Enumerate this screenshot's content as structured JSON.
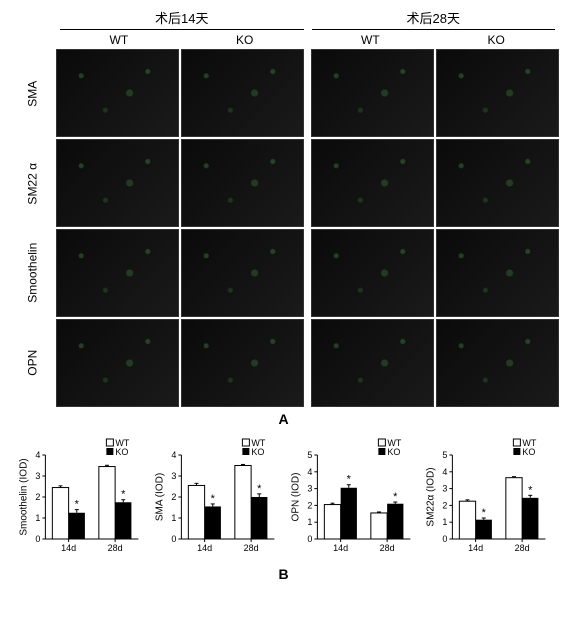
{
  "panelA": {
    "letter": "A",
    "timepoints": [
      "术后14天",
      "术后28天"
    ],
    "genotypes": [
      "WT",
      "KO",
      "WT",
      "KO"
    ],
    "markers": [
      "SMA",
      "SM22 α",
      "Smoothelin",
      "OPN"
    ]
  },
  "panelB": {
    "letter": "B",
    "legend": {
      "wt": "WT",
      "ko": "KO"
    },
    "charts": [
      {
        "ylabel": "Smoothelin (IOD)",
        "ylim": [
          0,
          4
        ],
        "ytick_step": 1,
        "categories": [
          "14d",
          "28d"
        ],
        "wt_values": [
          2.45,
          3.45
        ],
        "wt_err": [
          0.08,
          0.06
        ],
        "ko_values": [
          1.25,
          1.75
        ],
        "ko_err": [
          0.15,
          0.12
        ],
        "sig_14d": "*",
        "sig_28d": "*",
        "bar_colors": {
          "wt": "#ffffff",
          "ko": "#000000"
        },
        "bar_width": 0.35
      },
      {
        "ylabel": "SMA (IOD)",
        "ylim": [
          0,
          4
        ],
        "ytick_step": 1,
        "categories": [
          "14d",
          "28d"
        ],
        "wt_values": [
          2.55,
          3.5
        ],
        "wt_err": [
          0.1,
          0.05
        ],
        "ko_values": [
          1.55,
          2.0
        ],
        "ko_err": [
          0.12,
          0.15
        ],
        "sig_14d": "*",
        "sig_28d": "*",
        "bar_colors": {
          "wt": "#ffffff",
          "ko": "#000000"
        },
        "bar_width": 0.35
      },
      {
        "ylabel": "OPN (IOD)",
        "ylim": [
          0,
          5
        ],
        "ytick_step": 1,
        "categories": [
          "14d",
          "28d"
        ],
        "wt_values": [
          2.05,
          1.55
        ],
        "wt_err": [
          0.08,
          0.06
        ],
        "ko_values": [
          3.05,
          2.1
        ],
        "ko_err": [
          0.18,
          0.1
        ],
        "sig_14d": "*",
        "sig_28d": "*",
        "bar_colors": {
          "wt": "#ffffff",
          "ko": "#000000"
        },
        "bar_width": 0.35
      },
      {
        "ylabel": "SM22α (IOD)",
        "ylim": [
          0,
          5
        ],
        "ytick_step": 1,
        "categories": [
          "14d",
          "28d"
        ],
        "wt_values": [
          2.25,
          3.65
        ],
        "wt_err": [
          0.08,
          0.06
        ],
        "ko_values": [
          1.15,
          2.45
        ],
        "ko_err": [
          0.1,
          0.15
        ],
        "sig_14d": "*",
        "sig_28d": "*",
        "bar_colors": {
          "wt": "#ffffff",
          "ko": "#000000"
        },
        "bar_width": 0.35
      }
    ]
  }
}
